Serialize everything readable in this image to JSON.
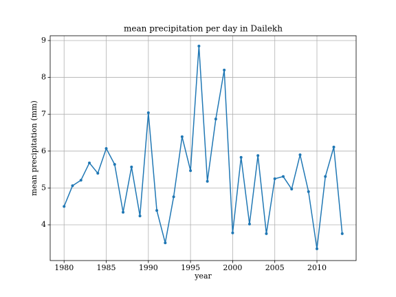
{
  "chart_data": {
    "type": "line",
    "title": "mean precipitation per day in Dailekh",
    "xlabel": "year",
    "ylabel": "mean precipitation (mm)",
    "x": [
      1980,
      1981,
      1982,
      1983,
      1984,
      1985,
      1986,
      1987,
      1988,
      1989,
      1990,
      1991,
      1992,
      1993,
      1994,
      1995,
      1996,
      1997,
      1998,
      1999,
      2000,
      2001,
      2002,
      2003,
      2004,
      2005,
      2006,
      2007,
      2008,
      2009,
      2010,
      2011,
      2012,
      2013
    ],
    "series": [
      {
        "name": "mean precipitation",
        "color": "#1f77b4",
        "values": [
          4.5,
          5.06,
          5.21,
          5.68,
          5.4,
          6.07,
          5.64,
          4.34,
          5.57,
          4.24,
          7.04,
          4.39,
          3.51,
          4.76,
          6.39,
          5.47,
          8.85,
          5.18,
          6.87,
          8.2,
          3.78,
          5.83,
          4.02,
          5.88,
          3.76,
          5.25,
          5.31,
          4.97,
          5.9,
          4.9,
          3.35,
          5.31,
          6.11,
          3.76
        ]
      }
    ],
    "xlim": [
      1978.35,
      2014.65
    ],
    "xticks": [
      1980,
      1985,
      1990,
      1995,
      2000,
      2005,
      2010
    ],
    "ylim": [
      3.03,
      9.13
    ],
    "yticks": [
      4,
      5,
      6,
      7,
      8,
      9
    ],
    "grid": true
  }
}
